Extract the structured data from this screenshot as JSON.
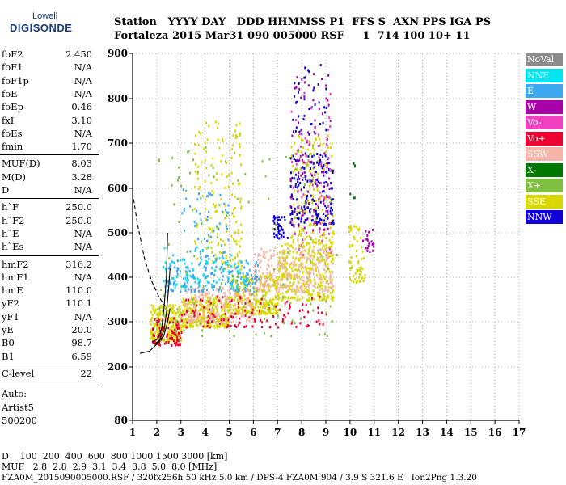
{
  "logo": {
    "top": "Lowell",
    "main": "DIGISONDE"
  },
  "header": {
    "row1": "Station   YYYY DAY   DDD HHMMSS P1  FFS S  AXN PPS IGA PS",
    "row2": "Fortaleza 2015 Mar31 090 005000 RSF     1  714 100 10+ 11"
  },
  "params": {
    "group1": [
      {
        "name": "foF2",
        "value": "2.450"
      },
      {
        "name": "foF1",
        "value": "N/A"
      },
      {
        "name": "foF1p",
        "value": "N/A"
      },
      {
        "name": "foE",
        "value": "N/A"
      },
      {
        "name": "foEp",
        "value": "0.46"
      },
      {
        "name": "fxI",
        "value": "3.10"
      },
      {
        "name": "foEs",
        "value": "N/A"
      },
      {
        "name": "fmin",
        "value": "1.70"
      }
    ],
    "group2": [
      {
        "name": "MUF(D)",
        "value": "8.03"
      },
      {
        "name": "M(D)",
        "value": "3.28"
      },
      {
        "name": "D",
        "value": "N/A"
      }
    ],
    "group3": [
      {
        "name": "h`F",
        "value": "250.0"
      },
      {
        "name": "h`F2",
        "value": "250.0"
      },
      {
        "name": "h`E",
        "value": "N/A"
      },
      {
        "name": "h`Es",
        "value": "N/A"
      }
    ],
    "group4": [
      {
        "name": "hmF2",
        "value": "316.2"
      },
      {
        "name": "hmF1",
        "value": "N/A"
      },
      {
        "name": "hmE",
        "value": "110.0"
      },
      {
        "name": "yF2",
        "value": "110.1"
      },
      {
        "name": "yF1",
        "value": "N/A"
      },
      {
        "name": "yE",
        "value": "20.0"
      },
      {
        "name": "B0",
        "value": "98.7"
      },
      {
        "name": "B1",
        "value": "6.59"
      }
    ],
    "clevel": {
      "name": "C-level",
      "value": "22"
    },
    "auto": [
      "Auto:",
      "Artist5",
      "500200"
    ]
  },
  "legend": [
    {
      "label": "NoVal",
      "color": "#8c8c8c"
    },
    {
      "label": "NNE",
      "color": "#00e5f0"
    },
    {
      "label": "E",
      "color": "#3ca8f0"
    },
    {
      "label": "W",
      "color": "#aa00aa"
    },
    {
      "label": "Vo-",
      "color": "#f040c0"
    },
    {
      "label": "Vo+",
      "color": "#f00030"
    },
    {
      "label": "SSW",
      "color": "#f4b4a8"
    },
    {
      "label": "X-",
      "color": "#007800"
    },
    {
      "label": "X+",
      "color": "#80c040"
    },
    {
      "label": "SSE",
      "color": "#d8d800"
    },
    {
      "label": "NNW",
      "color": "#1000d8"
    }
  ],
  "footer": {
    "d_row": "D    100  200  400  600  800 1000 1500 3000 [km]",
    "muf_row": "MUF   2.8  2.8  2.9  3.1  3.4  3.8  5.0  8.0 [MHz]",
    "file_row": "FZA0M_2015090005000.RSF / 320fx256h 50 kHz 5.0 km / DPS-4 FZA0M 904 / 3.9 S 321.6 E   Ion2Png 1.3.20"
  },
  "chart_data": {
    "type": "scatter",
    "xlim": [
      1,
      17
    ],
    "ylim": [
      80,
      900
    ],
    "x_ticks": [
      "1",
      "2",
      "3",
      "4",
      "5",
      "6",
      "7",
      "8",
      "9",
      "10",
      "11",
      "12",
      "13",
      "14",
      "15",
      "16",
      "17"
    ],
    "y_ticks": [
      "80",
      "200",
      "300",
      "400",
      "500",
      "600",
      "700",
      "800",
      "900"
    ],
    "grid": true,
    "legend_position": "right",
    "x_unit": "MHz",
    "y_unit": "km",
    "clusters": [
      {
        "label": "SSE",
        "x": [
          1.7,
          3.0
        ],
        "y": [
          260,
          340
        ],
        "n": 260
      },
      {
        "label": "SSE",
        "x": [
          3.0,
          5.0
        ],
        "y": [
          290,
          360
        ],
        "n": 320
      },
      {
        "label": "SSE",
        "x": [
          5.0,
          7.0
        ],
        "y": [
          320,
          410
        ],
        "n": 300
      },
      {
        "label": "SSE",
        "x": [
          7.0,
          9.3
        ],
        "y": [
          350,
          480
        ],
        "n": 320
      },
      {
        "label": "SSE",
        "x": [
          3.5,
          5.5
        ],
        "y": [
          420,
          760
        ],
        "n": 160
      },
      {
        "label": "SSE",
        "x": [
          7.5,
          9.3
        ],
        "y": [
          480,
          720
        ],
        "n": 180
      },
      {
        "label": "SSW",
        "x": [
          3.0,
          6.0
        ],
        "y": [
          300,
          380
        ],
        "n": 220
      },
      {
        "label": "SSW",
        "x": [
          6.0,
          9.3
        ],
        "y": [
          370,
          470
        ],
        "n": 260
      },
      {
        "label": "Vo+",
        "x": [
          1.8,
          3.0
        ],
        "y": [
          250,
          310
        ],
        "n": 90
      },
      {
        "label": "Vo+",
        "x": [
          3.0,
          9.0
        ],
        "y": [
          290,
          360
        ],
        "n": 120
      },
      {
        "label": "E",
        "x": [
          2.3,
          6.2
        ],
        "y": [
          370,
          440
        ],
        "n": 180
      },
      {
        "label": "E",
        "x": [
          3.0,
          5.0
        ],
        "y": [
          440,
          600
        ],
        "n": 60
      },
      {
        "label": "NNE",
        "x": [
          2.2,
          5.8
        ],
        "y": [
          380,
          470
        ],
        "n": 80
      },
      {
        "label": "NNW",
        "x": [
          7.5,
          9.3
        ],
        "y": [
          520,
          680
        ],
        "n": 180
      },
      {
        "label": "NNW",
        "x": [
          6.8,
          7.4
        ],
        "y": [
          490,
          540
        ],
        "n": 40
      },
      {
        "label": "NNW",
        "x": [
          7.6,
          9.0
        ],
        "y": [
          720,
          880
        ],
        "n": 40
      },
      {
        "label": "W",
        "x": [
          7.5,
          9.2
        ],
        "y": [
          500,
          860
        ],
        "n": 90
      },
      {
        "label": "Vo-",
        "x": [
          7.5,
          9.2
        ],
        "y": [
          450,
          820
        ],
        "n": 60
      },
      {
        "label": "X+",
        "x": [
          2.0,
          9.5
        ],
        "y": [
          270,
          700
        ],
        "n": 120
      },
      {
        "label": "X-",
        "x": [
          9.8,
          10.2
        ],
        "y": [
          580,
          700
        ],
        "n": 6
      },
      {
        "label": "SSE",
        "x": [
          9.9,
          10.6
        ],
        "y": [
          390,
          520
        ],
        "n": 60
      },
      {
        "label": "W",
        "x": [
          10.5,
          11.0
        ],
        "y": [
          460,
          510
        ],
        "n": 20
      }
    ]
  }
}
